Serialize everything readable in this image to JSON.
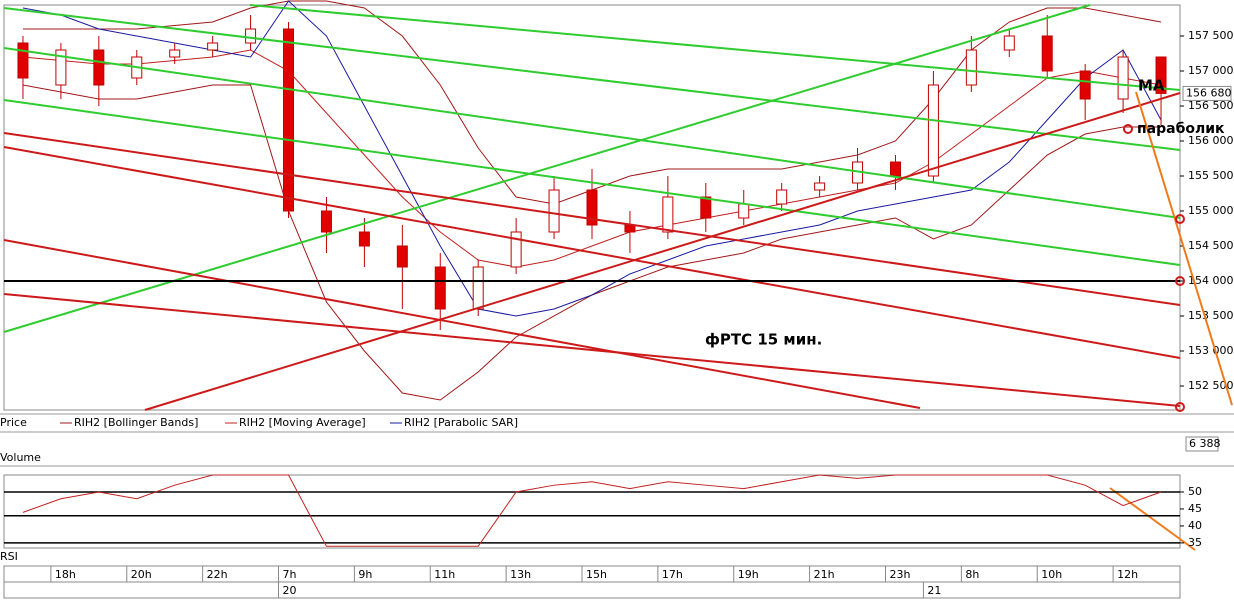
{
  "chart_data": {
    "type": "candlestick",
    "categories": [
      null,
      "18h",
      null,
      "20h",
      null,
      "22h",
      null,
      "7h",
      null,
      "9h",
      null,
      "11h",
      null,
      "13h",
      null,
      "15h",
      null,
      "17h",
      null,
      "19h",
      null,
      "21h",
      null,
      "23h",
      null,
      "8h",
      null,
      "10h",
      null,
      "12h",
      null
    ],
    "dates": [
      null,
      null,
      null,
      null,
      null,
      null,
      null,
      "20",
      null,
      null,
      null,
      null,
      null,
      null,
      null,
      null,
      null,
      null,
      null,
      null,
      null,
      null,
      null,
      null,
      "21",
      null,
      null,
      null,
      null,
      null,
      null
    ],
    "open": [
      157400,
      156800,
      157300,
      156900,
      157200,
      157300,
      157400,
      157600,
      155000,
      154700,
      154500,
      154200,
      153600,
      154200,
      154700,
      155300,
      154800,
      154700,
      155200,
      154900,
      155100,
      155300,
      155400,
      155700,
      155500,
      156800,
      157300,
      157500,
      157000,
      156600,
      157200
    ],
    "high": [
      157500,
      157400,
      157500,
      157300,
      157400,
      157500,
      157800,
      157700,
      155200,
      154900,
      154800,
      154400,
      154300,
      154900,
      155500,
      155600,
      155000,
      155500,
      155400,
      155300,
      155400,
      155500,
      155900,
      155800,
      157000,
      157500,
      157600,
      157800,
      157100,
      157300,
      157200
    ],
    "low": [
      156600,
      156600,
      156500,
      156800,
      157100,
      157200,
      157300,
      154900,
      154400,
      154200,
      153600,
      153300,
      153500,
      154100,
      154600,
      154600,
      154400,
      154600,
      154700,
      154800,
      155000,
      155200,
      155300,
      155300,
      155400,
      156700,
      157200,
      156900,
      156300,
      156400,
      156200
    ],
    "close": [
      156900,
      157300,
      156800,
      157200,
      157300,
      157400,
      157600,
      155000,
      154700,
      154500,
      154200,
      153600,
      154200,
      154700,
      155300,
      154800,
      154700,
      155200,
      154900,
      155100,
      155300,
      155400,
      155700,
      155500,
      156800,
      157300,
      157500,
      157000,
      156600,
      157200,
      156680
    ],
    "ylim": [
      152157,
      157943
    ],
    "yticks": [
      {
        "value": 152500,
        "label": "152 500"
      },
      {
        "value": 153000,
        "label": "153 000"
      },
      {
        "value": 153500,
        "label": "153 500"
      },
      {
        "value": 154000,
        "label": "154 000"
      },
      {
        "value": 154500,
        "label": "154 500"
      },
      {
        "value": 155000,
        "label": "155 000"
      },
      {
        "value": 155500,
        "label": "155 500"
      },
      {
        "value": 156000,
        "label": "156 000"
      },
      {
        "value": 156500,
        "label": "156 500"
      },
      {
        "value": 157000,
        "label": "157 000"
      },
      {
        "value": 157500,
        "label": "157 500"
      }
    ],
    "current_price": {
      "value": 156680,
      "label": "156 680"
    },
    "price_legend": "Price",
    "series": [
      {
        "name": "RIH2 [Bollinger Bands]",
        "color": "#a01818",
        "upper": [
          157600,
          157600,
          157600,
          157600,
          157650,
          157700,
          157900,
          158000,
          158000,
          157900,
          157500,
          156800,
          155900,
          155200,
          155100,
          155300,
          155500,
          155600,
          155600,
          155600,
          155600,
          155700,
          155800,
          156000,
          156600,
          157300,
          157700,
          157900,
          157900,
          157800,
          157700
        ],
        "lower": [
          156800,
          156700,
          156600,
          156600,
          156700,
          156800,
          156800,
          155000,
          153700,
          153000,
          152400,
          152300,
          152700,
          153200,
          153500,
          153800,
          154000,
          154200,
          154300,
          154400,
          154600,
          154700,
          154800,
          154900,
          154600,
          154800,
          155300,
          155800,
          156100,
          156200,
          156200
        ]
      },
      {
        "name": "RIH2 [Moving Average]",
        "color": "#c02020",
        "values": [
          157200,
          157150,
          157100,
          157100,
          157150,
          157200,
          157300,
          157000,
          156400,
          155800,
          155200,
          154700,
          154300,
          154200,
          154300,
          154500,
          154700,
          154800,
          154900,
          155000,
          155100,
          155200,
          155300,
          155400,
          155700,
          156100,
          156500,
          156900,
          157000,
          156900,
          156800
        ]
      },
      {
        "name": "RIH2 [Parabolic SAR]",
        "color": "#1a1aa0",
        "values": [
          157900,
          157800,
          157600,
          157500,
          157400,
          157300,
          157200,
          158000,
          157500,
          156500,
          155500,
          154500,
          153600,
          153500,
          153600,
          153800,
          154100,
          154300,
          154500,
          154600,
          154700,
          154800,
          155000,
          155100,
          155200,
          155300,
          155700,
          156300,
          156900,
          157300,
          156300
        ]
      }
    ],
    "annotations": [
      "фРТС   15 мин.",
      "МА",
      "параболик"
    ],
    "volume": {
      "label": "Volume",
      "last": {
        "value": 6388,
        "label": "6 388"
      }
    },
    "rsi": {
      "label": "RSI",
      "values": [
        44,
        48,
        50,
        48,
        52,
        55,
        55,
        55,
        34,
        34,
        34,
        34,
        34,
        50,
        52,
        53,
        51,
        53,
        52,
        51,
        53,
        55,
        54,
        55,
        55,
        55,
        55,
        55,
        52,
        46,
        50
      ],
      "ylim": [
        33.5,
        55
      ],
      "yticks": [
        35,
        40,
        45,
        50
      ],
      "levels": [
        50,
        43,
        35
      ]
    }
  }
}
